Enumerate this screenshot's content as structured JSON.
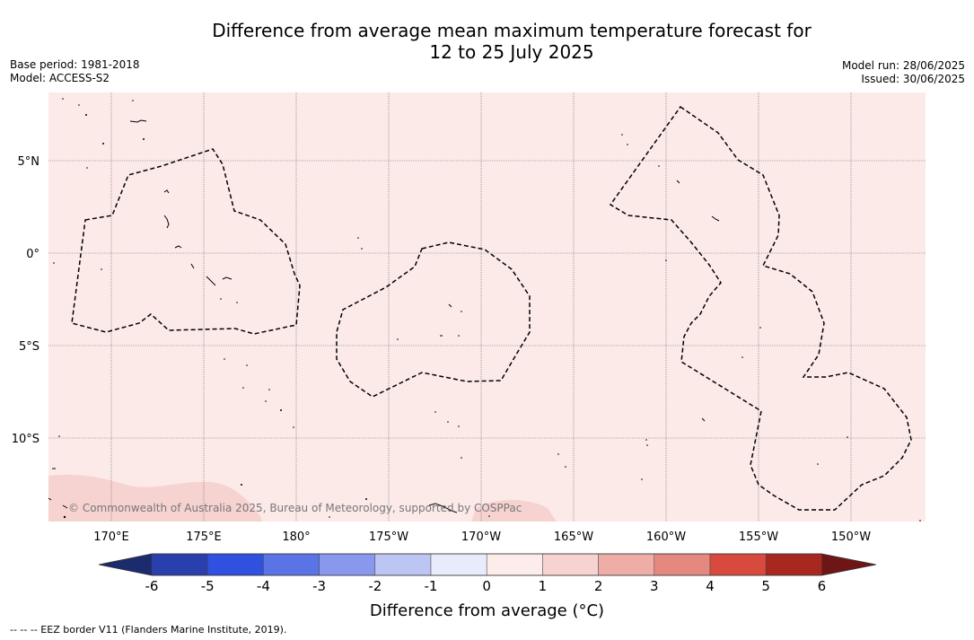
{
  "title_line1": "Difference from average mean maximum temperature forecast for",
  "title_line2": "12 to 25 July 2025",
  "base_period": "Base period: 1981-2018",
  "model": "Model: ACCESS-S2",
  "model_run": "Model run: 28/06/2025",
  "issued": "Issued: 30/06/2025",
  "copyright": "© Commonwealth of Australia 2025, Bureau of Meteorology, supported by COSPPac",
  "lon_ticks": [
    "170°E",
    "175°E",
    "180°",
    "175°W",
    "170°W",
    "165°W",
    "160°W",
    "155°W",
    "150°W"
  ],
  "lat_ticks": [
    "5°N",
    "0°",
    "5°S",
    "10°S"
  ],
  "colorbar": {
    "title": "Difference from average (°C)",
    "ticks": [
      "-6",
      "-5",
      "-4",
      "-3",
      "-2",
      "-1",
      "0",
      "1",
      "2",
      "3",
      "4",
      "5",
      "6"
    ],
    "colors": [
      "#1c2a6e",
      "#2a3fae",
      "#3050e0",
      "#5a74e6",
      "#8898ec",
      "#bdc6f3",
      "#e8ebfb",
      "#fcecea",
      "#f6d3d0",
      "#eeaea7",
      "#e58880",
      "#d84a3e",
      "#a8271f",
      "#6e1616"
    ]
  },
  "map_fill_color": "#fbeae8",
  "warm_patch_color": "#f6d3d0",
  "footnote": "-- -- -- EEZ border V11 (Flanders Marine Institute, 2019)."
}
